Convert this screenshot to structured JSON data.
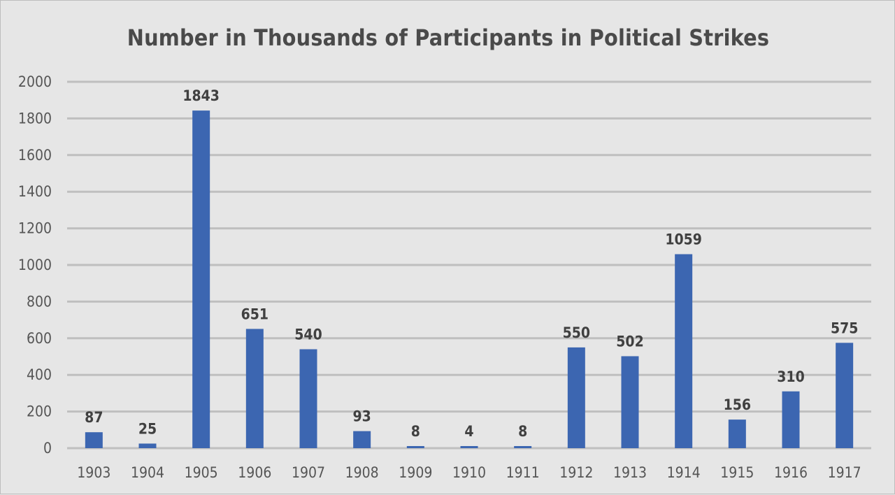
{
  "chart_data": {
    "type": "bar",
    "title": "Number in Thousands of Participants in Political Strikes",
    "xlabel": "",
    "ylabel": "",
    "categories": [
      "1903",
      "1904",
      "1905",
      "1906",
      "1907",
      "1908",
      "1909",
      "1910",
      "1911",
      "1912",
      "1913",
      "1914",
      "1915",
      "1916",
      "1917"
    ],
    "values": [
      87,
      25,
      1843,
      651,
      540,
      93,
      8,
      4,
      8,
      550,
      502,
      1059,
      156,
      310,
      575
    ],
    "ylim": [
      0,
      2000
    ],
    "yticks": [
      0,
      200,
      400,
      600,
      800,
      1000,
      1200,
      1400,
      1600,
      1800,
      2000
    ],
    "grid": true,
    "data_labels": true,
    "legend": "none",
    "colors": {
      "bar": "#3c66b1",
      "background": "#e6e6e6",
      "grid": "#bfbfbf",
      "title": "#4a4a4a"
    }
  }
}
